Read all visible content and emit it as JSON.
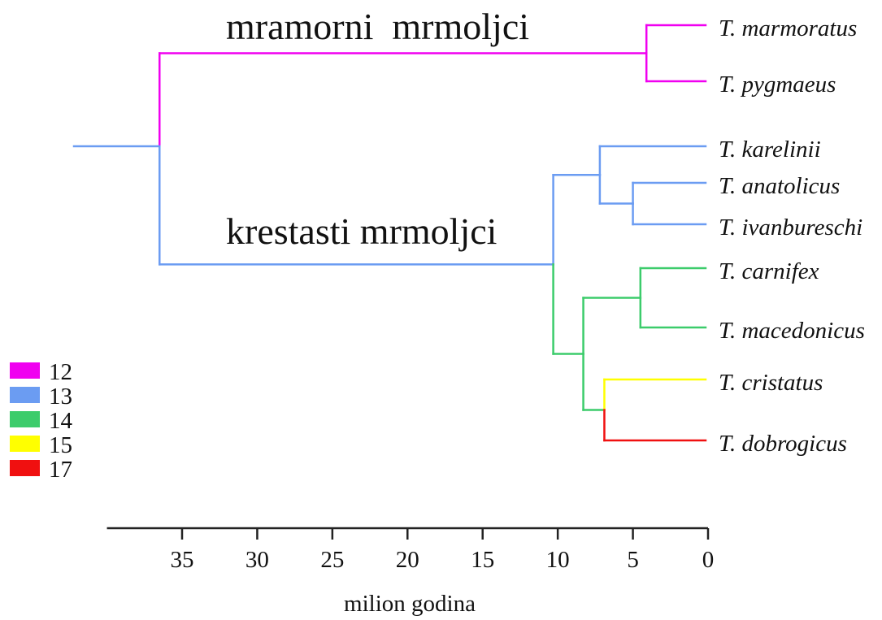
{
  "clade_labels": {
    "marbled": "mramorni  mrmoljci",
    "crested": "krestasti mrmoljci"
  },
  "legend": [
    {
      "label": "12",
      "color": "#f000f0"
    },
    {
      "label": "13",
      "color": "#6b9cf2"
    },
    {
      "label": "14",
      "color": "#3ccc6b"
    },
    {
      "label": "15",
      "color": "#ffff00"
    },
    {
      "label": "17",
      "color": "#f01010"
    }
  ],
  "axis": {
    "label": "milion godina",
    "ticks": [
      "35",
      "30",
      "25",
      "20",
      "15",
      "10",
      "5",
      "0"
    ],
    "range": [
      40,
      0
    ]
  },
  "tree": {
    "age": 36.5,
    "color": "#6b9cf2",
    "children": [
      {
        "age": 4.1,
        "color": "#f000f0",
        "children": [
          {
            "name": "T. marmoratus"
          },
          {
            "name": "T. pygmaeus"
          }
        ]
      },
      {
        "age": 10.3,
        "color": "#6b9cf2",
        "children": [
          {
            "age": 7.2,
            "color": "#6b9cf2",
            "children": [
              {
                "name": "T. karelinii"
              },
              {
                "age": 5.0,
                "children": [
                  {
                    "name": "T. anatolicus"
                  },
                  {
                    "name": "T. ivanbureschi"
                  }
                ]
              }
            ]
          },
          {
            "age": 8.3,
            "color": "#3ccc6b",
            "children": [
              {
                "age": 4.5,
                "children": [
                  {
                    "name": "T. carnifex"
                  },
                  {
                    "name": "T. macedonicus"
                  }
                ]
              },
              {
                "age": 6.9,
                "children": [
                  {
                    "name": "T. cristatus",
                    "color": "#ffff00"
                  },
                  {
                    "name": "T. dobrogicus",
                    "color": "#f01010"
                  }
                ]
              }
            ]
          }
        ]
      }
    ]
  }
}
